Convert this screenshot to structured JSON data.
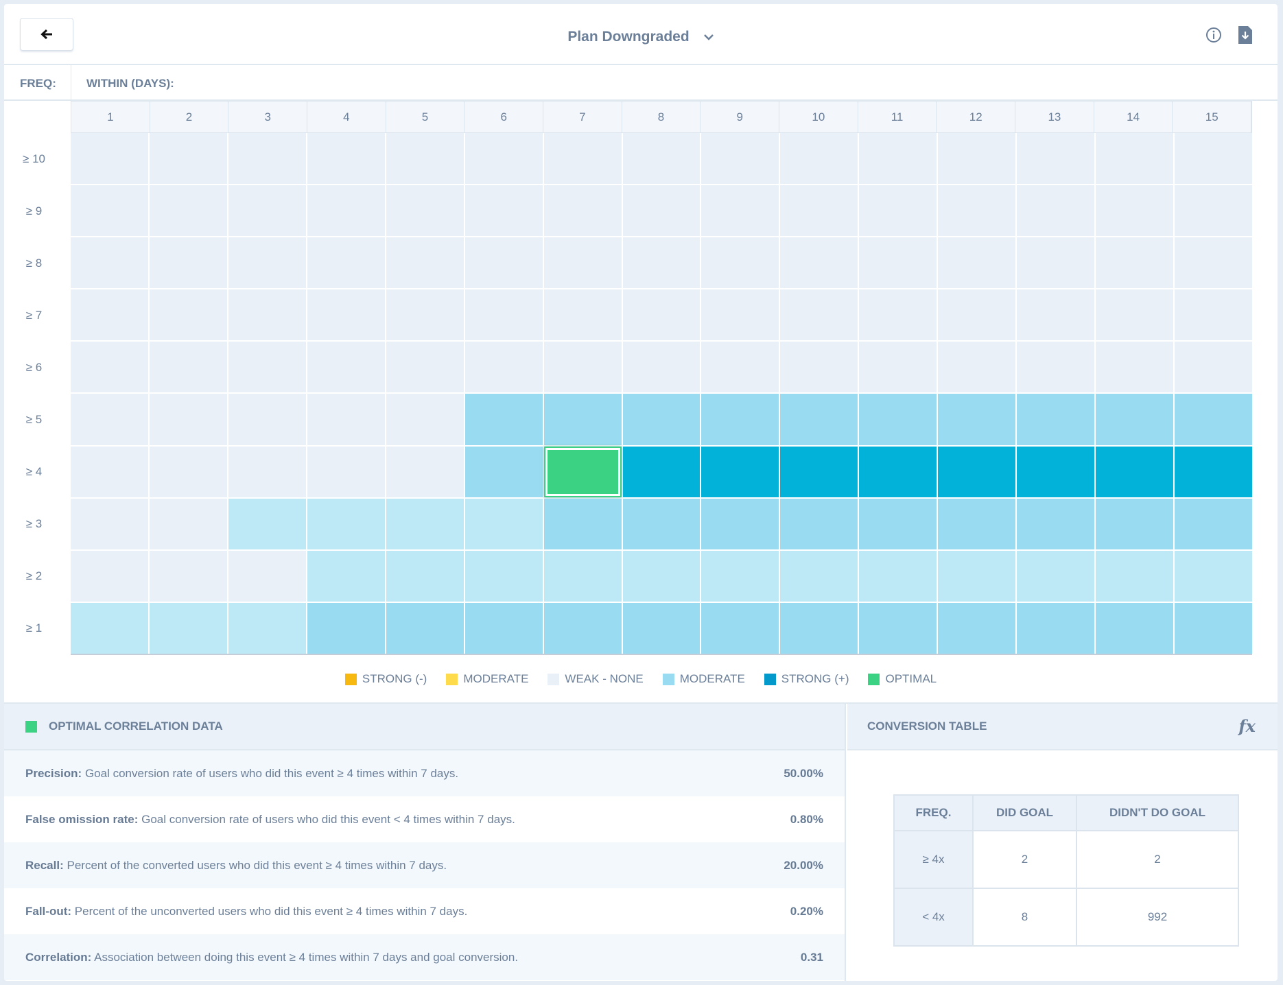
{
  "header": {
    "title": "Plan Downgraded",
    "back_icon": "arrow-left-icon",
    "info_icon": "info-icon",
    "download_icon": "download-file-icon"
  },
  "axis": {
    "freq_label": "FREQ:",
    "within_label": "WITHIN (DAYS):"
  },
  "chart_data": {
    "type": "heatmap",
    "xlabel": "WITHIN (DAYS):",
    "ylabel": "FREQ:",
    "columns": [
      "1",
      "2",
      "3",
      "4",
      "5",
      "6",
      "7",
      "8",
      "9",
      "10",
      "11",
      "12",
      "13",
      "14",
      "15"
    ],
    "rows": [
      "≥ 10",
      "≥ 9",
      "≥ 8",
      "≥ 7",
      "≥ 6",
      "≥ 5",
      "≥ 4",
      "≥ 3",
      "≥ 2",
      "≥ 1"
    ],
    "level_key": {
      "0": "weak-none",
      "1": "weak positive (light)",
      "2": "moderate (+)",
      "3": "strong (+)",
      "4": "optimal"
    },
    "cells": [
      [
        0,
        0,
        0,
        0,
        0,
        0,
        0,
        0,
        0,
        0,
        0,
        0,
        0,
        0,
        0
      ],
      [
        0,
        0,
        0,
        0,
        0,
        0,
        0,
        0,
        0,
        0,
        0,
        0,
        0,
        0,
        0
      ],
      [
        0,
        0,
        0,
        0,
        0,
        0,
        0,
        0,
        0,
        0,
        0,
        0,
        0,
        0,
        0
      ],
      [
        0,
        0,
        0,
        0,
        0,
        0,
        0,
        0,
        0,
        0,
        0,
        0,
        0,
        0,
        0
      ],
      [
        0,
        0,
        0,
        0,
        0,
        0,
        0,
        0,
        0,
        0,
        0,
        0,
        0,
        0,
        0
      ],
      [
        0,
        0,
        0,
        0,
        0,
        2,
        2,
        2,
        2,
        2,
        2,
        2,
        2,
        2,
        2
      ],
      [
        0,
        0,
        0,
        0,
        0,
        2,
        4,
        3,
        3,
        3,
        3,
        3,
        3,
        3,
        3
      ],
      [
        0,
        0,
        1,
        1,
        1,
        1,
        2,
        2,
        2,
        2,
        2,
        2,
        2,
        2,
        2
      ],
      [
        0,
        0,
        0,
        1,
        1,
        1,
        1,
        1,
        1,
        1,
        1,
        1,
        1,
        1,
        1
      ],
      [
        1,
        1,
        1,
        2,
        2,
        2,
        2,
        2,
        2,
        2,
        2,
        2,
        2,
        2,
        2
      ]
    ],
    "legend": [
      {
        "label": "STRONG (-)",
        "color": "#f7b90f"
      },
      {
        "label": "MODERATE",
        "color": "#fedb4a"
      },
      {
        "label": "WEAK - NONE",
        "color": "#e9f0f7"
      },
      {
        "label": "MODERATE",
        "color": "#99dcf1"
      },
      {
        "label": "STRONG (+)",
        "color": "#0399cb"
      },
      {
        "label": "OPTIMAL",
        "color": "#3bd284"
      }
    ]
  },
  "optimal": {
    "title": "OPTIMAL CORRELATION DATA",
    "metrics": [
      {
        "name": "Precision:",
        "desc": "Goal conversion rate of users who did this event ≥ 4 times within 7 days.",
        "value": "50.00%"
      },
      {
        "name": "False omission rate:",
        "desc": "Goal conversion rate of users who did this event < 4 times within 7 days.",
        "value": "0.80%"
      },
      {
        "name": "Recall:",
        "desc": "Percent of the converted users who did this event ≥ 4 times within 7 days.",
        "value": "20.00%"
      },
      {
        "name": "Fall-out:",
        "desc": "Percent of the unconverted users who did this event ≥ 4 times within 7 days.",
        "value": "0.20%"
      },
      {
        "name": "Correlation:",
        "desc": "Association between doing this event ≥ 4 times within 7 days and goal conversion.",
        "value": "0.31"
      }
    ]
  },
  "conversion": {
    "title": "CONVERSION TABLE",
    "fx": "fx",
    "headers": [
      "FREQ.",
      "DID GOAL",
      "DIDN'T DO GOAL"
    ],
    "rows": [
      [
        "≥ 4x",
        "2",
        "2"
      ],
      [
        "< 4x",
        "8",
        "992"
      ]
    ]
  }
}
